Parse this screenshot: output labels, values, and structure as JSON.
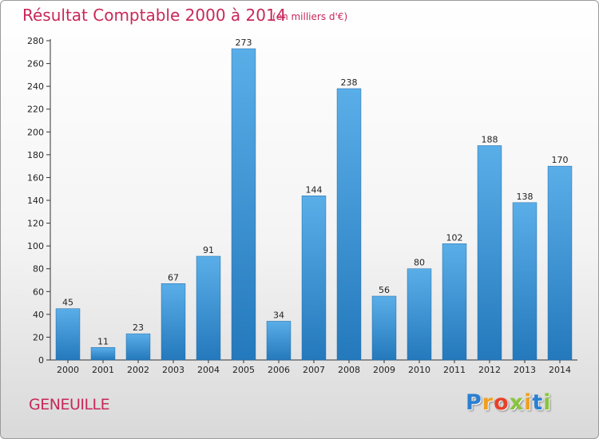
{
  "chart_data": {
    "type": "bar",
    "title": "Résultat Comptable 2000 à 2014",
    "subtitle": "(en milliers d'€)",
    "categories": [
      "2000",
      "2001",
      "2002",
      "2003",
      "2004",
      "2005",
      "2006",
      "2007",
      "2008",
      "2009",
      "2010",
      "2011",
      "2012",
      "2013",
      "2014"
    ],
    "values": [
      45,
      11,
      23,
      67,
      91,
      273,
      34,
      144,
      238,
      56,
      80,
      102,
      188,
      138,
      170
    ],
    "xlabel": "",
    "ylabel": "",
    "ylim": [
      0,
      280
    ],
    "yticks": [
      0,
      20,
      40,
      60,
      80,
      100,
      120,
      140,
      160,
      180,
      200,
      220,
      240,
      260,
      280
    ],
    "grid": false,
    "bar_color_light": "#5aaee8",
    "bar_color_dark": "#2479bc"
  },
  "town": "GENEUILLE",
  "brand": {
    "letters": [
      "P",
      "r",
      "o",
      "x",
      "i",
      "t",
      "i"
    ],
    "colors": [
      "#2b7fd1",
      "#f0a020",
      "#e8402a",
      "#8ac43c",
      "#f0a020",
      "#2b7fd1",
      "#8ac43c"
    ]
  },
  "colors": {
    "accent": "#c8285a",
    "axis": "#333333"
  }
}
